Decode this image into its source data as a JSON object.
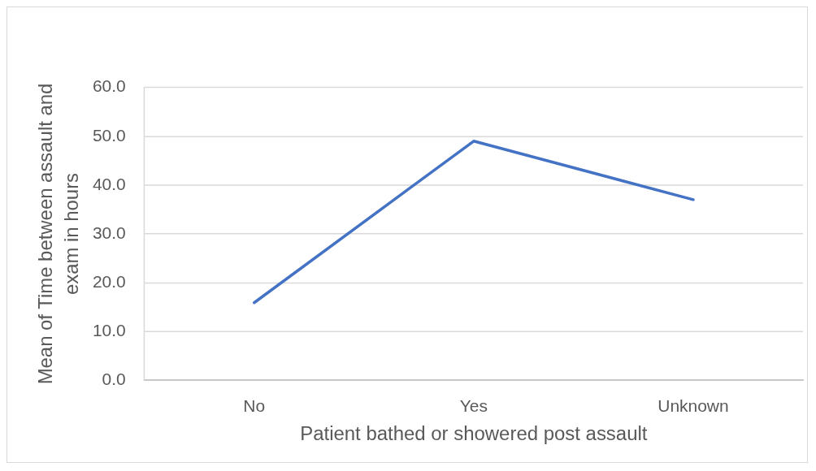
{
  "chart_data": {
    "type": "line",
    "xlabel": "Patient bathed or showered post assault",
    "ylabel": "Mean of Time between assault and exam in hours",
    "categories": [
      "No",
      "Yes",
      "Unknown"
    ],
    "series": [
      {
        "color": "#4472c4",
        "values": [
          15.9,
          49.0,
          37.0
        ]
      }
    ],
    "ylim": [
      0,
      60
    ],
    "yticks": [
      {
        "value": 0,
        "label": "0.0"
      },
      {
        "value": 10,
        "label": "10.0"
      },
      {
        "value": 20,
        "label": "20.0"
      },
      {
        "value": 30,
        "label": "30.0"
      },
      {
        "value": 40,
        "label": "40.0"
      },
      {
        "value": 50,
        "label": "50.0"
      },
      {
        "value": 60,
        "label": "60.0"
      }
    ],
    "grid": "y",
    "marker": "none",
    "line_style": "solid",
    "legend": false
  }
}
